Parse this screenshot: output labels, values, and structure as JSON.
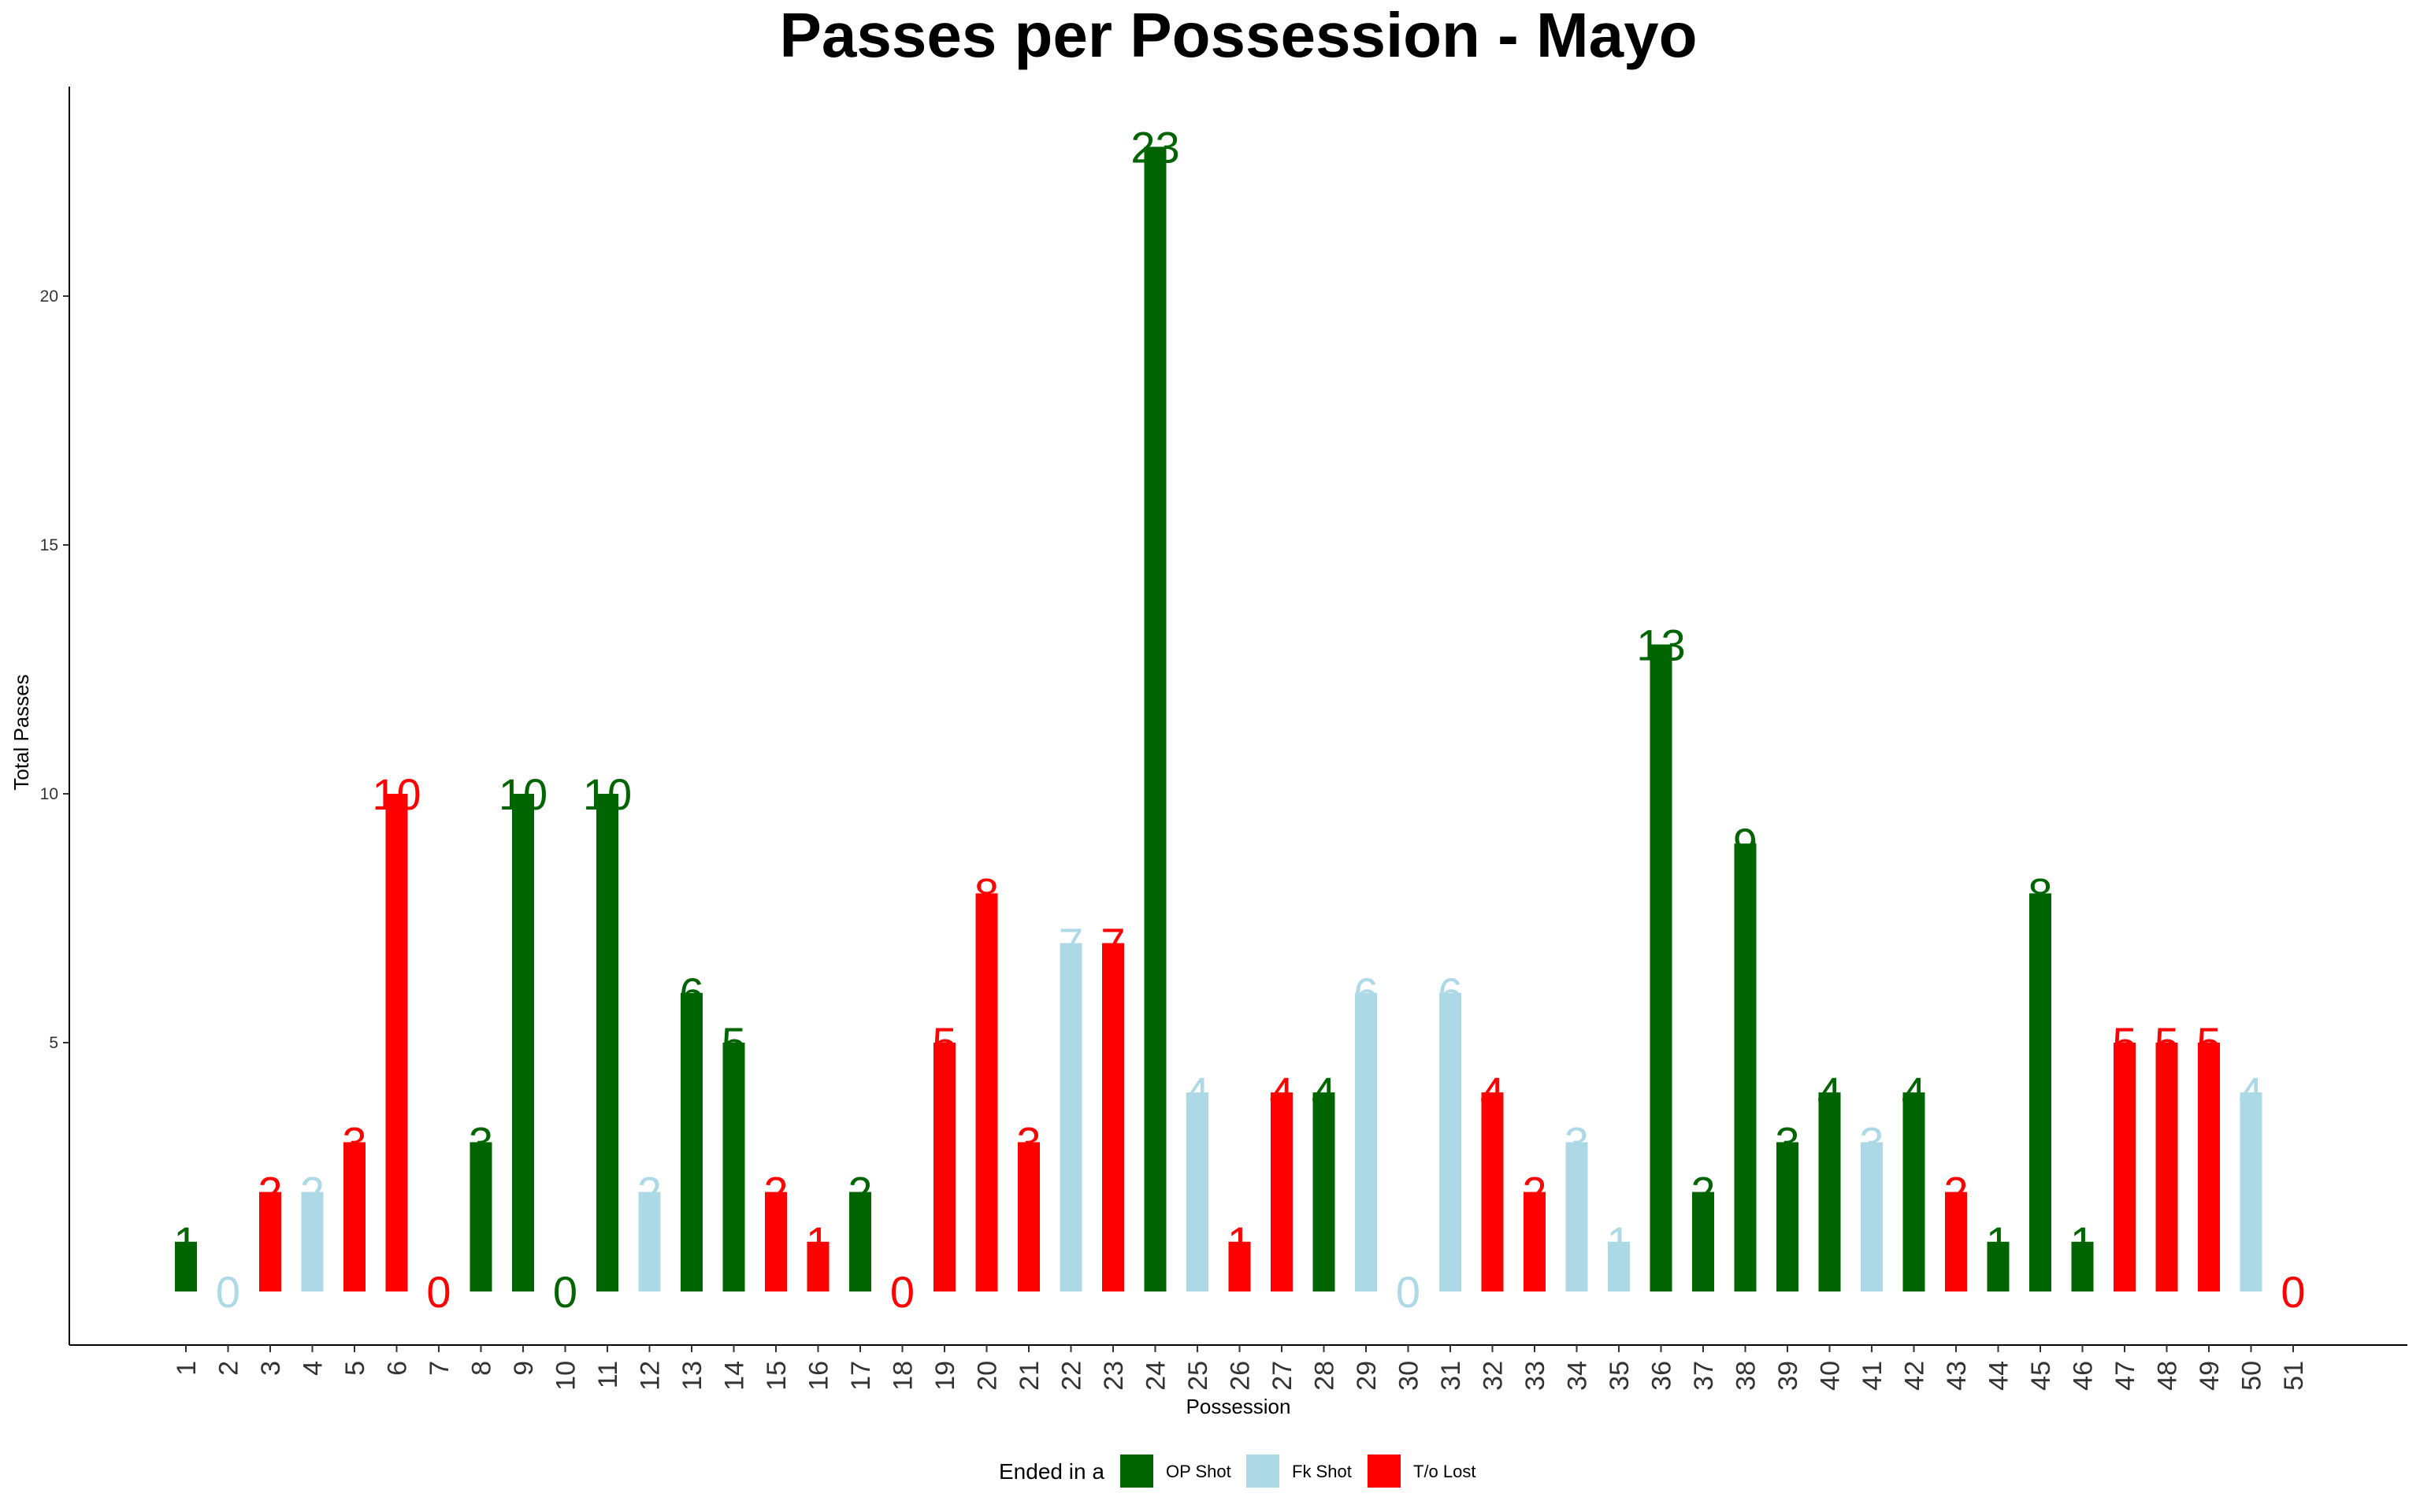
{
  "chart_data": {
    "type": "bar",
    "title": "Passes per Possession - Mayo",
    "xlabel": "Possession",
    "ylabel": "Total Passes",
    "ylim": [
      0,
      23.5
    ],
    "yticks": [
      5,
      10,
      15,
      20
    ],
    "categories": [
      "1",
      "2",
      "3",
      "4",
      "5",
      "6",
      "7",
      "8",
      "9",
      "10",
      "11",
      "12",
      "13",
      "14",
      "15",
      "16",
      "17",
      "18",
      "19",
      "20",
      "21",
      "22",
      "23",
      "24",
      "25",
      "26",
      "27",
      "28",
      "29",
      "30",
      "31",
      "32",
      "33",
      "34",
      "35",
      "36",
      "37",
      "38",
      "39",
      "40",
      "41",
      "42",
      "43",
      "44",
      "45",
      "46",
      "47",
      "48",
      "49",
      "50",
      "51"
    ],
    "values": [
      1,
      0,
      2,
      2,
      3,
      10,
      0,
      3,
      10,
      0,
      10,
      2,
      6,
      5,
      2,
      1,
      2,
      0,
      5,
      8,
      3,
      7,
      7,
      23,
      4,
      1,
      4,
      4,
      6,
      0,
      6,
      4,
      2,
      3,
      1,
      13,
      2,
      9,
      3,
      4,
      3,
      4,
      2,
      1,
      8,
      1,
      5,
      5,
      5,
      4,
      0
    ],
    "groups": [
      "OP Shot",
      "Fk Shot",
      "T/o Lost",
      "Fk Shot",
      "T/o Lost",
      "T/o Lost",
      "T/o Lost",
      "OP Shot",
      "OP Shot",
      "OP Shot",
      "OP Shot",
      "Fk Shot",
      "OP Shot",
      "OP Shot",
      "T/o Lost",
      "T/o Lost",
      "OP Shot",
      "T/o Lost",
      "T/o Lost",
      "T/o Lost",
      "T/o Lost",
      "Fk Shot",
      "T/o Lost",
      "OP Shot",
      "Fk Shot",
      "T/o Lost",
      "T/o Lost",
      "OP Shot",
      "Fk Shot",
      "Fk Shot",
      "Fk Shot",
      "T/o Lost",
      "T/o Lost",
      "Fk Shot",
      "Fk Shot",
      "OP Shot",
      "OP Shot",
      "OP Shot",
      "OP Shot",
      "OP Shot",
      "Fk Shot",
      "OP Shot",
      "T/o Lost",
      "OP Shot",
      "OP Shot",
      "OP Shot",
      "T/o Lost",
      "T/o Lost",
      "T/o Lost",
      "Fk Shot",
      "T/o Lost"
    ],
    "legend": {
      "title": "Ended in a",
      "position": "bottom",
      "items": [
        {
          "name": "OP Shot",
          "color": "#006400"
        },
        {
          "name": "Fk Shot",
          "color": "#add8e6"
        },
        {
          "name": "T/o Lost",
          "color": "#ff0000"
        }
      ]
    },
    "grid": false
  }
}
